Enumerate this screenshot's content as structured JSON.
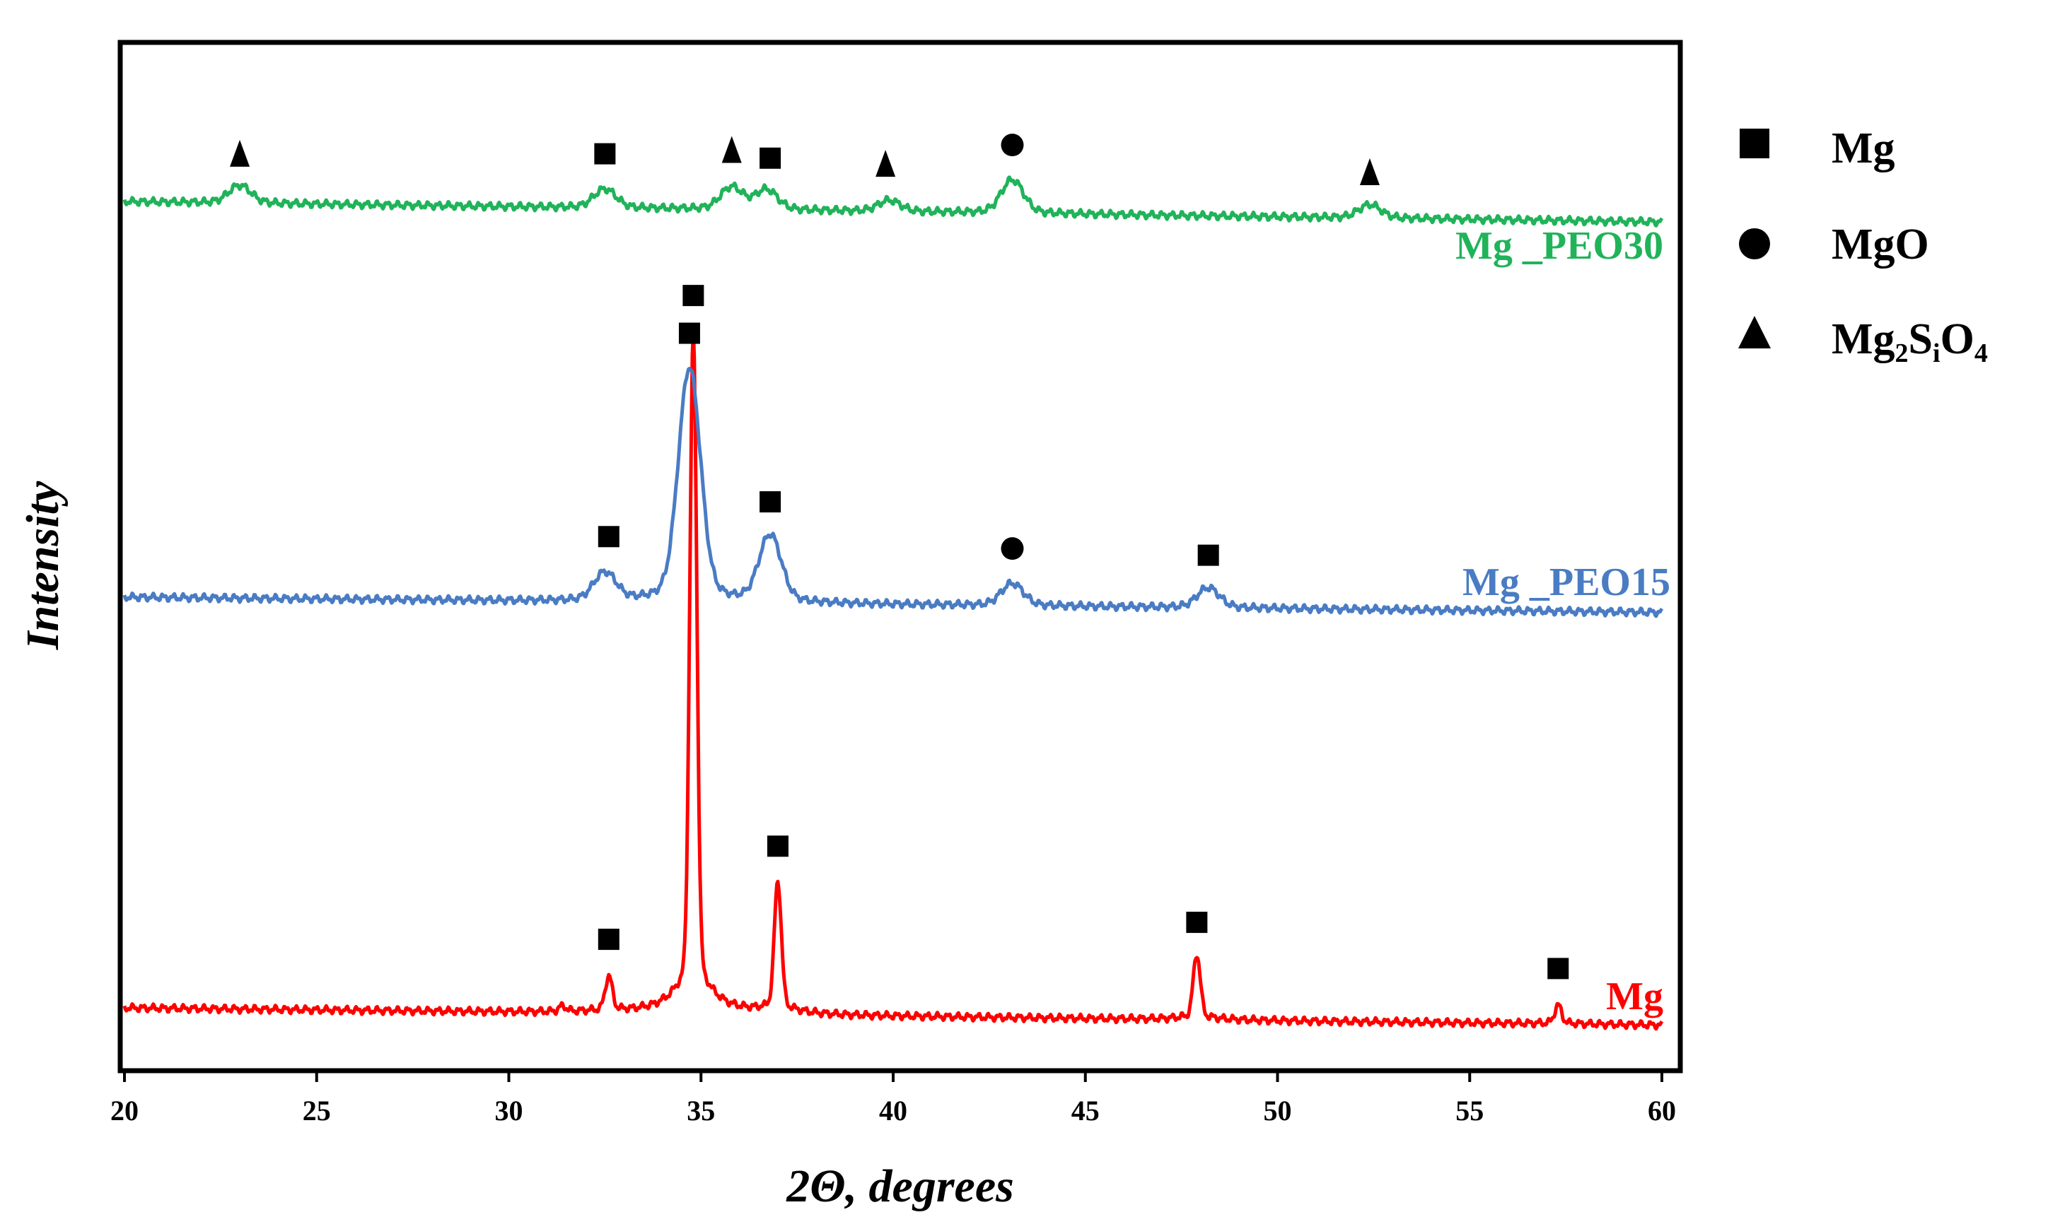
{
  "chart_data": {
    "type": "line",
    "title": "",
    "xlabel": "2Θ, degrees",
    "ylabel": "Intensity",
    "xlim": [
      20,
      60
    ],
    "x_ticks": [
      20,
      25,
      30,
      35,
      40,
      45,
      50,
      55,
      60
    ],
    "y_ticks_shown": false,
    "grid": false,
    "legend": {
      "placement": "right-outside-top",
      "entries": [
        {
          "symbol": "square",
          "label": "Mg",
          "label_main": "Mg",
          "label_parts": []
        },
        {
          "symbol": "circle",
          "label": "MgO",
          "label_main": "MgO",
          "label_parts": []
        },
        {
          "symbol": "triangle",
          "label": "Mg2SiO4",
          "label_main": "Mg",
          "label_parts": [
            {
              "text": "2",
              "sub": true
            },
            {
              "text": "S",
              "sub": false
            },
            {
              "text": "i",
              "sub": true
            },
            {
              "text": "O",
              "sub": false
            },
            {
              "text": "4",
              "sub": true
            }
          ]
        }
      ]
    },
    "series": [
      {
        "name": "Mg",
        "label": "Mg",
        "color": "#ff0000",
        "baseline": 0.055,
        "baseline_end": 0.038,
        "peak_shape": "sharp",
        "peaks": [
          {
            "x": 31.4,
            "height": 0.005
          },
          {
            "x": 32.6,
            "height": 0.032
          },
          {
            "x": 34.8,
            "height": 0.62
          },
          {
            "x": 37.0,
            "height": 0.12
          },
          {
            "x": 47.9,
            "height": 0.06
          },
          {
            "x": 57.3,
            "height": 0.017
          }
        ],
        "markers": [
          {
            "x": 32.6,
            "symbol": "square"
          },
          {
            "x": 34.8,
            "symbol": "square"
          },
          {
            "x": 37.0,
            "symbol": "square"
          },
          {
            "x": 47.9,
            "symbol": "square"
          },
          {
            "x": 57.3,
            "symbol": "square"
          }
        ]
      },
      {
        "name": "Mg _PEO15",
        "label": "Mg _PEO15",
        "color": "#4a7cc4",
        "baseline": 0.46,
        "baseline_end": 0.445,
        "peak_shape": "broad",
        "peaks": [
          {
            "x": 32.5,
            "height": 0.025
          },
          {
            "x": 34.7,
            "height": 0.21
          },
          {
            "x": 36.8,
            "height": 0.06
          },
          {
            "x": 43.1,
            "height": 0.02
          },
          {
            "x": 48.2,
            "height": 0.018
          }
        ],
        "markers": [
          {
            "x": 32.6,
            "symbol": "square"
          },
          {
            "x": 34.7,
            "symbol": "square"
          },
          {
            "x": 36.8,
            "symbol": "square"
          },
          {
            "x": 43.1,
            "symbol": "circle"
          },
          {
            "x": 48.2,
            "symbol": "square"
          }
        ]
      },
      {
        "name": "Mg _PEO30",
        "label": "Mg _PEO30",
        "color": "#20b35a",
        "baseline": 0.85,
        "baseline_end": 0.83,
        "peak_shape": "broad",
        "peaks": [
          {
            "x": 23.0,
            "height": 0.016
          },
          {
            "x": 32.5,
            "height": 0.017
          },
          {
            "x": 35.8,
            "height": 0.02
          },
          {
            "x": 36.7,
            "height": 0.018
          },
          {
            "x": 39.9,
            "height": 0.01
          },
          {
            "x": 43.1,
            "height": 0.03
          },
          {
            "x": 52.4,
            "height": 0.012
          }
        ],
        "markers": [
          {
            "x": 23.0,
            "symbol": "triangle"
          },
          {
            "x": 32.5,
            "symbol": "square"
          },
          {
            "x": 35.8,
            "symbol": "triangle"
          },
          {
            "x": 36.8,
            "symbol": "square"
          },
          {
            "x": 39.8,
            "symbol": "triangle"
          },
          {
            "x": 43.1,
            "symbol": "circle"
          },
          {
            "x": 52.4,
            "symbol": "triangle"
          }
        ]
      }
    ]
  }
}
